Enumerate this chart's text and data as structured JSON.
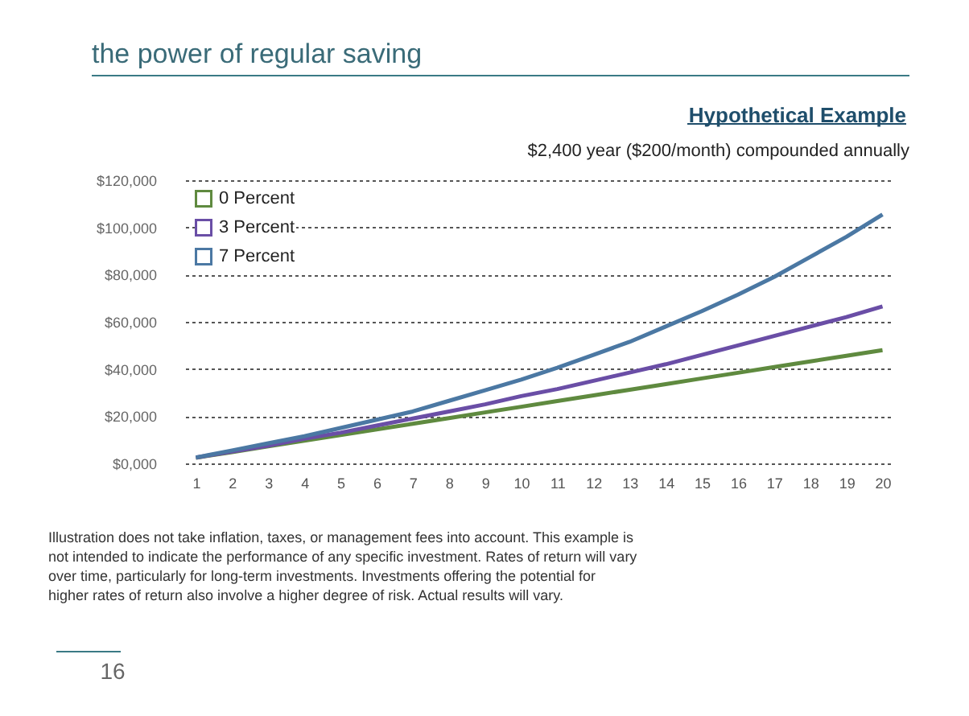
{
  "chart_data": {
    "type": "line",
    "title": "the power of regular saving",
    "subtitle": "Hypothetical Example",
    "x": [
      1,
      2,
      3,
      4,
      5,
      6,
      7,
      8,
      9,
      10,
      11,
      12,
      13,
      14,
      15,
      16,
      17,
      18,
      19,
      20
    ],
    "xlim": [
      0.7,
      20.3
    ],
    "xticks": [
      1,
      2,
      3,
      4,
      5,
      6,
      7,
      8,
      9,
      10,
      11,
      12,
      13,
      14,
      15,
      16,
      17,
      18,
      19,
      20
    ],
    "series": [
      {
        "name": "0 Percent",
        "color": "#5f8a3f",
        "values": [
          2400,
          4800,
          7200,
          9600,
          12000,
          14400,
          16800,
          19200,
          21600,
          24000,
          26400,
          28800,
          31200,
          33600,
          36000,
          38400,
          40800,
          43200,
          45600,
          48000
        ]
      },
      {
        "name": "3 Percent",
        "color": "#6a4ea6",
        "values": [
          2500,
          5000,
          7500,
          10500,
          13000,
          16000,
          19000,
          22000,
          25000,
          28500,
          31500,
          35000,
          38500,
          42000,
          46000,
          50000,
          54000,
          58000,
          62000,
          66500
        ]
      },
      {
        "name": "7 Percent",
        "color": "#4b78a3",
        "values": [
          2500,
          5500,
          8500,
          11500,
          15000,
          18500,
          22000,
          26500,
          31000,
          35500,
          40500,
          46000,
          51500,
          58000,
          64500,
          71500,
          79000,
          87500,
          96000,
          105500
        ]
      }
    ],
    "ylim": [
      0,
      120000
    ],
    "yticks": [
      {
        "value": 0,
        "label": "$0,000"
      },
      {
        "value": 20000,
        "label": "$20,000"
      },
      {
        "value": 40000,
        "label": "$40,000"
      },
      {
        "value": 60000,
        "label": "$60,000"
      },
      {
        "value": 80000,
        "label": "$80,000"
      },
      {
        "value": 100000,
        "label": "$100,000"
      },
      {
        "value": 120000,
        "label": "$120,000"
      }
    ],
    "grid": "y",
    "legend": "top left",
    "marker": "none",
    "line_style": "solid",
    "annotations": [
      "$2,400 year ($200/month) compounded annually",
      "Illustration does not take inflation, taxes, or management fees into account. This example is not intended to indicate the performance of any specific investment. Rates of return will vary over time, particularly for long-term investments. Investments offering the potential for higher rates of return also involve a higher degree of risk. Actual results will vary.",
      "16"
    ]
  }
}
